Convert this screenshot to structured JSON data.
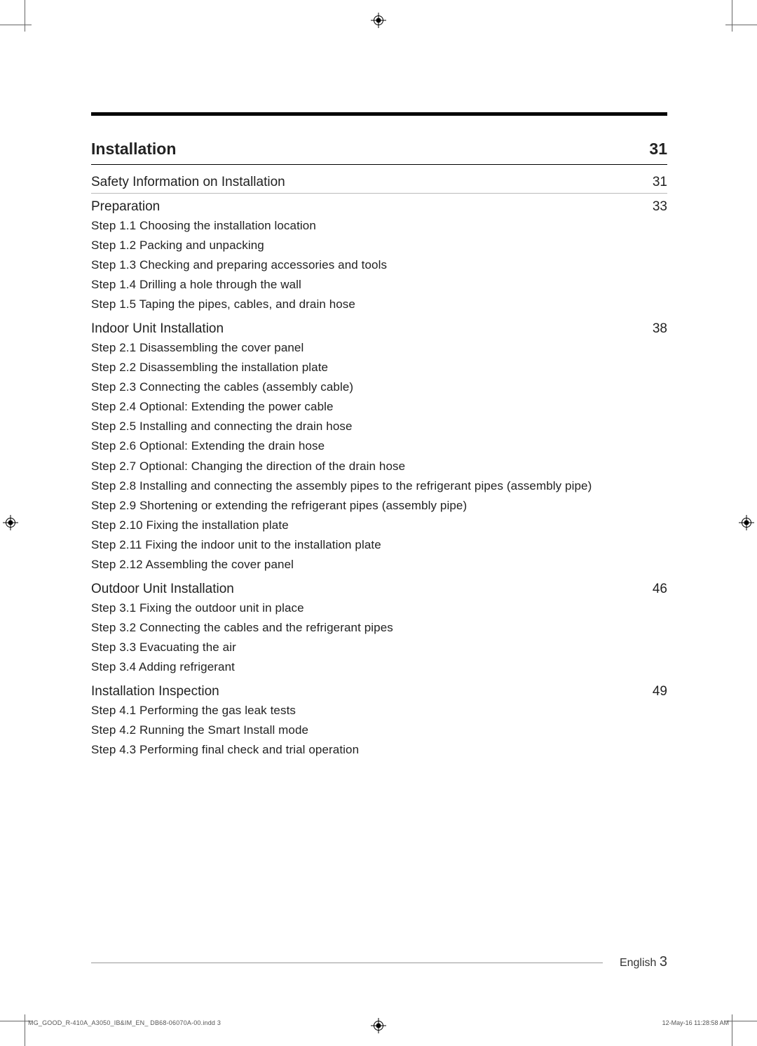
{
  "toc": {
    "main_heading": {
      "title": "Installation",
      "page": "31"
    },
    "sections": [
      {
        "title": "Safety Information on Installation",
        "page": "31",
        "steps": []
      },
      {
        "title": "Preparation",
        "page": "33",
        "steps": [
          "Step 1.1  Choosing the installation location",
          "Step 1.2  Packing and unpacking",
          "Step 1.3  Checking and preparing accessories and tools",
          "Step 1.4  Drilling a hole through the wall",
          "Step 1.5  Taping the pipes, cables, and drain hose"
        ]
      },
      {
        "title": "Indoor Unit Installation",
        "page": "38",
        "steps": [
          "Step 2.1  Disassembling the cover panel",
          "Step 2.2  Disassembling the installation plate",
          "Step 2.3  Connecting the cables (assembly cable)",
          "Step 2.4  Optional: Extending the power cable",
          "Step 2.5  Installing and connecting the drain hose",
          "Step 2.6  Optional: Extending the drain hose",
          "Step 2.7  Optional: Changing the direction of the drain hose",
          "Step 2.8  Installing and connecting the assembly pipes to the refrigerant pipes (assembly pipe)",
          "Step 2.9  Shortening or extending the refrigerant pipes (assembly pipe)",
          "Step 2.10  Fixing the installation plate",
          "Step 2.11  Fixing the indoor unit to the installation plate",
          "Step 2.12  Assembling the cover panel"
        ]
      },
      {
        "title": "Outdoor Unit Installation",
        "page": "46",
        "steps": [
          "Step 3.1  Fixing the outdoor unit in place",
          "Step 3.2  Connecting the cables and the refrigerant pipes",
          "Step 3.3  Evacuating the air",
          "Step 3.4  Adding refrigerant"
        ]
      },
      {
        "title": "Installation Inspection",
        "page": "49",
        "steps": [
          "Step 4.1  Performing the gas leak tests",
          "Step 4.2  Running the Smart Install mode",
          "Step 4.3  Performing final check and trial operation"
        ]
      }
    ]
  },
  "footer": {
    "language": "English",
    "page_number": "3",
    "imprint_left": "MG_GOOD_R-410A_A3050_IB&IM_EN_ DB68-06070A-00.indd   3",
    "imprint_right": "12-May-16   11:28:58 AM"
  },
  "style": {
    "text_color": "#222222",
    "rule_color": "#000000",
    "light_rule": "#bbbbbb",
    "background": "#ffffff"
  }
}
